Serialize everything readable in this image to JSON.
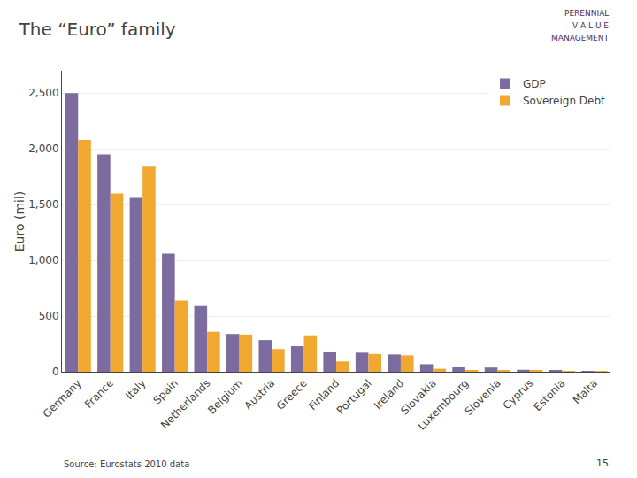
{
  "chart_data": {
    "type": "bar",
    "title": "The “Euro” family",
    "ylabel": "Euro (mil)",
    "annotations": [
      "Source: Eurostats 2010 data",
      "15",
      "PERENNIAL",
      "V A L U E",
      "MANAGEMENT"
    ],
    "categories": [
      "Germany",
      "France",
      "Italy",
      "Spain",
      "Netherlands",
      "Belgium",
      "Austria",
      "Greece",
      "Finland",
      "Portugal",
      "Ireland",
      "Slovakia",
      "Luxembourg",
      "Slovenia",
      "Cyprus",
      "Estonia",
      "Malta"
    ],
    "series": [
      {
        "name": "GDP",
        "color": "#7b6b9e",
        "values": [
          2500,
          1950,
          1560,
          1060,
          590,
          340,
          285,
          230,
          175,
          172,
          156,
          68,
          40,
          38,
          18,
          14,
          6
        ]
      },
      {
        "name": "Sovereign Debt",
        "color": "#f0a830",
        "values": [
          2080,
          1600,
          1840,
          640,
          360,
          335,
          205,
          320,
          93,
          160,
          148,
          27,
          10,
          13,
          10,
          1,
          5
        ]
      }
    ],
    "ylim": [
      0,
      2700
    ],
    "yticks": [
      0,
      500,
      {
        "value": 1000,
        "label": "1,000"
      },
      {
        "value": 1500,
        "label": "1,500"
      },
      {
        "value": 2000,
        "label": "2,000"
      },
      {
        "value": 2500,
        "label": "2,500"
      }
    ],
    "grid": true,
    "legend": "upper right"
  }
}
